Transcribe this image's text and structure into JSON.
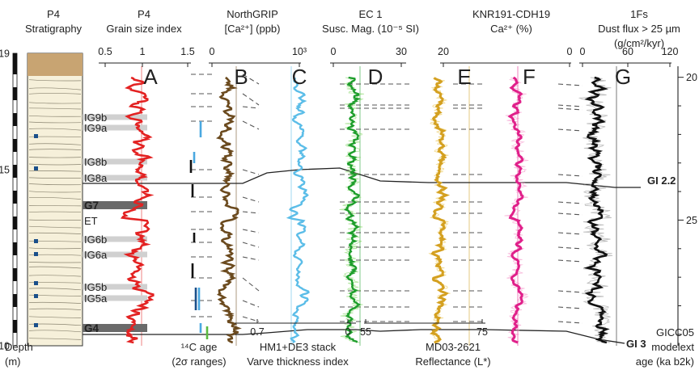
{
  "chart_data": {
    "type": "line",
    "title": "",
    "panels": [
      {
        "letter": "A",
        "series": "P4 Grain size index",
        "header": [
          "P4",
          "Grain size index"
        ],
        "ticks": [
          "0.5",
          "1",
          "1.5"
        ],
        "xlim": [
          0.5,
          1.5
        ],
        "color": "#e32222"
      },
      {
        "letter": "B",
        "series": "NorthGRIP [Ca2+] (ppb)",
        "header": [
          "NorthGRIP",
          "[Ca²⁺] (ppb)"
        ],
        "ticks_top": [
          "0",
          "10³"
        ],
        "ticks_bottom": [
          "0.7"
        ],
        "color": "#6b4a1e"
      },
      {
        "letter": "C",
        "series": "HM1+DE3 stack Varve thickness index",
        "footer": [
          "HM1+DE3 stack",
          "Varve thickness index"
        ],
        "ticks_bottom": [
          "0"
        ],
        "color": "#5bbde8"
      },
      {
        "letter": "D",
        "series": "EC 1 Susc. Mag. (10^-5 SI)",
        "header": [
          "EC 1",
          "Susc. Mag. (10⁻⁵ SI)"
        ],
        "ticks_top": [
          "0",
          "30"
        ],
        "ticks_bottom": [
          "55"
        ],
        "color": "#1e9e2c"
      },
      {
        "letter": "E",
        "series": "MD03-2621 Reflectance (L*)",
        "footer": [
          "MD03-2621",
          "Reflectance (L*)"
        ],
        "ticks_top": [
          "20"
        ],
        "ticks_bottom": [
          "75"
        ],
        "color": "#d4a020"
      },
      {
        "letter": "F",
        "series": "KNR191-CDH19 Ca2+ (%)",
        "header": [
          "KNR191-CDH19",
          "Ca²⁺ (%)"
        ],
        "ticks_top": [
          "0"
        ],
        "color": "#e0208a"
      },
      {
        "letter": "G",
        "series": "1Fs Dust flux > 25 µm (g/cm2/kyr)",
        "header": [
          "1Fs",
          "Dust flux > 25 µm",
          "(g/cm²/kyr)"
        ],
        "ticks_top": [
          "0",
          "60",
          "120"
        ],
        "color": "#111111"
      }
    ],
    "stratigraphy": {
      "header": [
        "P4",
        "Stratigraphy"
      ],
      "depth_axis": {
        "label": [
          "Depth",
          "(m)"
        ],
        "ticks": [
          "19",
          "15",
          "10"
        ]
      },
      "units": [
        "IG9b",
        "IG9a",
        "IG8b",
        "IG8a",
        "G7",
        "ET",
        "IG6b",
        "IG6a",
        "IG5b",
        "IG5a",
        "G4"
      ]
    },
    "age_axis": {
      "label": [
        "GICC05",
        "modelext",
        "age (ka b2k)"
      ],
      "ticks": [
        20,
        25
      ],
      "minor_step": 1,
      "range": [
        19.5,
        29.4
      ]
    },
    "radiocarbon_label": [
      "¹⁴C age",
      "(2σ ranges)"
    ],
    "correlation_labels": [
      "GI 2.2",
      "GI 3"
    ]
  }
}
